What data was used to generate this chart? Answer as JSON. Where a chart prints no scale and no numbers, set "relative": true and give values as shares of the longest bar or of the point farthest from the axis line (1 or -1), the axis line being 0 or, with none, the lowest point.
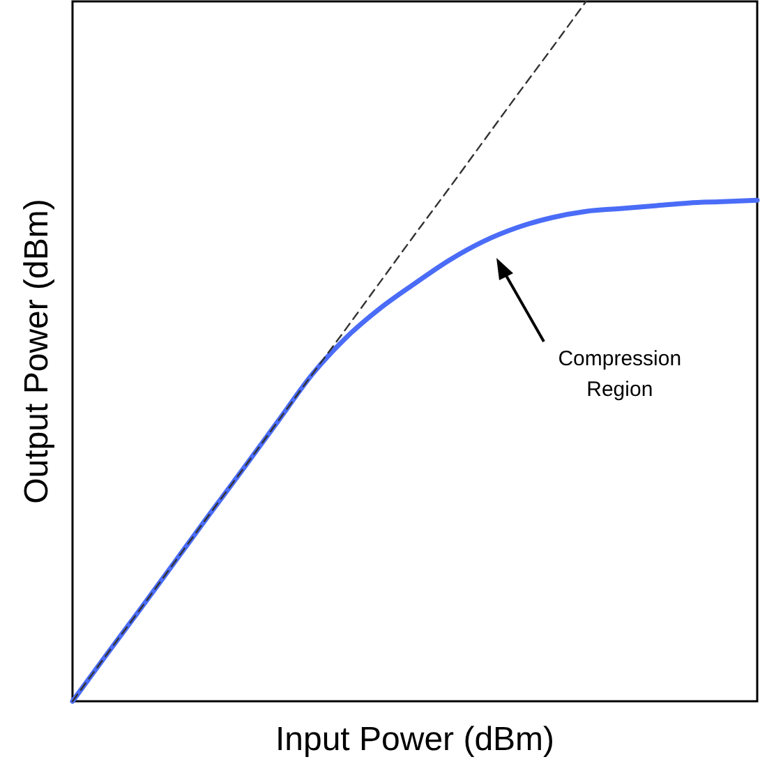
{
  "chart_data": {
    "type": "line",
    "relative": true,
    "xlabel": "Input Power (dBm)",
    "ylabel": "Output Power (dBm)",
    "categories": [
      null,
      null,
      null,
      null,
      null,
      null,
      null,
      null,
      null,
      null,
      null,
      null,
      null,
      null,
      null,
      null,
      null,
      null,
      null,
      null,
      null
    ],
    "series": [
      {
        "color": "#4a6cf7",
        "line_style": "solid",
        "values": [
          0,
          0.067,
          0.133,
          0.2,
          0.267,
          0.333,
          0.4,
          0.467,
          0.52,
          0.562,
          0.597,
          0.63,
          0.657,
          0.677,
          0.691,
          0.7,
          0.704,
          0.708,
          0.712,
          0.714,
          0.716
        ]
      },
      {
        "color": "#333333",
        "line_style": "dashed",
        "values": [
          0,
          0.067,
          0.133,
          0.2,
          0.267,
          0.333,
          0.4,
          0.467,
          0.533,
          0.6,
          0.667,
          0.733,
          0.8,
          0.867,
          0.933,
          1,
          null,
          null,
          null,
          null,
          null
        ]
      }
    ],
    "annotations": [
      "Compression\nRegion"
    ]
  }
}
